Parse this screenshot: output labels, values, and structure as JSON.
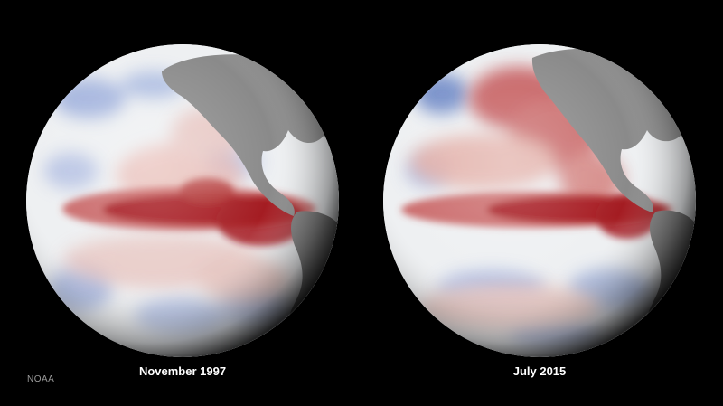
{
  "globes": [
    {
      "caption": "November 1997"
    },
    {
      "caption": "July 2015"
    }
  ],
  "credit": "NOAA",
  "colors": {
    "background": "#000000",
    "warm_anomaly": "#a3121a",
    "cool_anomaly": "#5a78c0",
    "land": "#8a8a8a",
    "ocean_neutral": "#eef0f2"
  }
}
